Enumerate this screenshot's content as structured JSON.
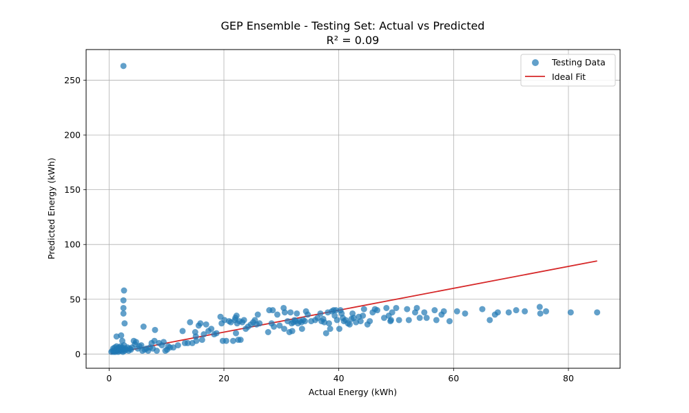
{
  "chart_data": {
    "type": "scatter",
    "title": "GEP Ensemble - Testing Set: Actual vs Predicted",
    "subtitle": "R² = 0.09",
    "xlabel": "Actual Energy (kWh)",
    "ylabel": "Predicted Energy (kWh)",
    "xlim": [
      -4,
      89
    ],
    "ylim": [
      -13,
      278
    ],
    "xticks": [
      0,
      20,
      40,
      60,
      80
    ],
    "yticks": [
      0,
      50,
      100,
      150,
      200,
      250
    ],
    "grid": true,
    "legend_position": "top-right",
    "colors": {
      "scatter": "#1f77b4",
      "ideal": "#d62728"
    },
    "legend": [
      {
        "label": "Testing Data",
        "marker": "circle"
      },
      {
        "label": "Ideal Fit",
        "marker": "line"
      }
    ],
    "ideal_fit": {
      "name": "Ideal Fit",
      "x": [
        0.3,
        85
      ],
      "y": [
        0.3,
        85
      ]
    },
    "series": [
      {
        "name": "Testing Data",
        "points": [
          [
            0.4,
            2
          ],
          [
            0.6,
            3
          ],
          [
            0.7,
            5
          ],
          [
            0.8,
            2
          ],
          [
            0.9,
            3
          ],
          [
            1.0,
            6
          ],
          [
            1.1,
            2
          ],
          [
            1.2,
            4
          ],
          [
            1.3,
            7
          ],
          [
            1.4,
            3
          ],
          [
            1.5,
            5
          ],
          [
            1.6,
            2
          ],
          [
            1.7,
            6
          ],
          [
            1.8,
            3
          ],
          [
            1.9,
            4
          ],
          [
            2.0,
            7
          ],
          [
            2.1,
            5
          ],
          [
            2.2,
            3
          ],
          [
            2.3,
            6
          ],
          [
            2.4,
            2
          ],
          [
            2.5,
            4
          ],
          [
            2.6,
            8
          ],
          [
            2.7,
            3
          ],
          [
            2.8,
            5
          ],
          [
            3.0,
            4
          ],
          [
            3.2,
            6
          ],
          [
            3.4,
            3
          ],
          [
            3.6,
            5
          ],
          [
            3.8,
            4
          ],
          [
            4.0,
            6
          ],
          [
            1.3,
            16
          ],
          [
            2.1,
            17
          ],
          [
            2.3,
            12
          ],
          [
            2.5,
            263
          ],
          [
            2.6,
            58
          ],
          [
            2.5,
            49
          ],
          [
            2.5,
            42
          ],
          [
            2.5,
            37
          ],
          [
            2.7,
            28
          ],
          [
            4.3,
            12
          ],
          [
            4.5,
            9
          ],
          [
            4.7,
            11
          ],
          [
            5.0,
            5
          ],
          [
            5.3,
            7
          ],
          [
            5.6,
            8
          ],
          [
            5.8,
            3
          ],
          [
            6.0,
            25
          ],
          [
            6.2,
            4
          ],
          [
            6.5,
            5
          ],
          [
            6.8,
            3
          ],
          [
            7.1,
            6
          ],
          [
            7.4,
            10
          ],
          [
            7.6,
            5
          ],
          [
            7.9,
            12
          ],
          [
            8.0,
            22
          ],
          [
            8.3,
            3
          ],
          [
            8.7,
            10
          ],
          [
            9.2,
            8
          ],
          [
            9.5,
            11
          ],
          [
            9.8,
            3
          ],
          [
            10.1,
            4
          ],
          [
            10.3,
            7
          ],
          [
            10.6,
            6
          ],
          [
            11.2,
            6
          ],
          [
            12.0,
            8
          ],
          [
            12.8,
            21
          ],
          [
            13.2,
            10
          ],
          [
            13.7,
            10
          ],
          [
            14.1,
            29
          ],
          [
            14.5,
            10
          ],
          [
            15.0,
            20
          ],
          [
            15.1,
            16
          ],
          [
            15.2,
            12
          ],
          [
            15.6,
            26
          ],
          [
            15.9,
            28
          ],
          [
            16.2,
            13
          ],
          [
            16.5,
            18
          ],
          [
            16.9,
            27
          ],
          [
            17.3,
            21
          ],
          [
            17.8,
            23
          ],
          [
            18.3,
            18
          ],
          [
            18.7,
            19
          ],
          [
            19.4,
            34
          ],
          [
            19.6,
            28
          ],
          [
            19.8,
            12
          ],
          [
            20.1,
            31
          ],
          [
            20.4,
            12
          ],
          [
            20.9,
            30
          ],
          [
            21.2,
            29
          ],
          [
            21.6,
            12
          ],
          [
            21.9,
            31
          ],
          [
            22.0,
            33
          ],
          [
            22.1,
            19
          ],
          [
            22.2,
            35
          ],
          [
            22.3,
            28
          ],
          [
            22.5,
            13
          ],
          [
            22.7,
            30
          ],
          [
            22.9,
            13
          ],
          [
            23.2,
            29
          ],
          [
            23.5,
            31
          ],
          [
            23.8,
            23
          ],
          [
            24.2,
            25
          ],
          [
            24.7,
            27
          ],
          [
            25.1,
            29
          ],
          [
            25.4,
            31
          ],
          [
            25.7,
            27
          ],
          [
            25.9,
            36
          ],
          [
            26.2,
            28
          ],
          [
            27.7,
            20
          ],
          [
            27.9,
            40
          ],
          [
            28.3,
            28
          ],
          [
            28.5,
            40
          ],
          [
            28.7,
            25
          ],
          [
            29.3,
            36
          ],
          [
            29.7,
            26
          ],
          [
            30.4,
            42
          ],
          [
            30.5,
            23
          ],
          [
            30.6,
            38
          ],
          [
            31.1,
            30
          ],
          [
            31.4,
            20
          ],
          [
            31.6,
            38
          ],
          [
            31.8,
            28
          ],
          [
            31.9,
            21
          ],
          [
            32.1,
            29
          ],
          [
            32.3,
            31
          ],
          [
            32.5,
            30
          ],
          [
            32.7,
            37
          ],
          [
            32.9,
            28
          ],
          [
            33.2,
            30
          ],
          [
            33.5,
            29
          ],
          [
            33.6,
            23
          ],
          [
            33.8,
            31
          ],
          [
            34.1,
            30
          ],
          [
            34.3,
            39
          ],
          [
            34.6,
            36
          ],
          [
            35.2,
            30
          ],
          [
            35.9,
            31
          ],
          [
            36.3,
            33
          ],
          [
            36.8,
            37
          ],
          [
            37.0,
            30
          ],
          [
            37.3,
            32
          ],
          [
            37.5,
            29
          ],
          [
            37.8,
            19
          ],
          [
            38.1,
            38
          ],
          [
            38.3,
            28
          ],
          [
            38.5,
            23
          ],
          [
            38.8,
            39
          ],
          [
            39.1,
            40
          ],
          [
            39.3,
            35
          ],
          [
            39.5,
            40
          ],
          [
            39.7,
            31
          ],
          [
            40.1,
            23
          ],
          [
            40.3,
            40
          ],
          [
            40.5,
            37
          ],
          [
            40.7,
            33
          ],
          [
            40.9,
            30
          ],
          [
            41.2,
            31
          ],
          [
            41.6,
            28
          ],
          [
            41.9,
            27
          ],
          [
            42.2,
            32
          ],
          [
            42.4,
            37
          ],
          [
            42.6,
            33
          ],
          [
            43.0,
            29
          ],
          [
            43.5,
            34
          ],
          [
            43.8,
            30
          ],
          [
            44.2,
            35
          ],
          [
            44.4,
            41
          ],
          [
            45.0,
            27
          ],
          [
            45.4,
            30
          ],
          [
            45.9,
            38
          ],
          [
            46.3,
            41
          ],
          [
            46.7,
            40
          ],
          [
            47.9,
            33
          ],
          [
            48.3,
            42
          ],
          [
            48.7,
            35
          ],
          [
            49.0,
            30
          ],
          [
            49.3,
            38
          ],
          [
            49.1,
            31
          ],
          [
            50.0,
            42
          ],
          [
            50.5,
            31
          ],
          [
            51.9,
            41
          ],
          [
            52.2,
            31
          ],
          [
            53.3,
            38
          ],
          [
            53.6,
            42
          ],
          [
            54.1,
            33
          ],
          [
            54.9,
            38
          ],
          [
            55.3,
            33
          ],
          [
            56.7,
            40
          ],
          [
            57.0,
            31
          ],
          [
            57.9,
            36
          ],
          [
            58.3,
            39
          ],
          [
            59.3,
            30
          ],
          [
            60.6,
            39
          ],
          [
            62.0,
            37
          ],
          [
            65.0,
            41
          ],
          [
            66.3,
            31
          ],
          [
            67.2,
            36
          ],
          [
            67.7,
            38
          ],
          [
            69.6,
            38
          ],
          [
            70.9,
            40
          ],
          [
            72.4,
            39
          ],
          [
            75.0,
            43
          ],
          [
            75.1,
            37
          ],
          [
            76.1,
            39
          ],
          [
            80.4,
            38
          ],
          [
            85.0,
            38
          ]
        ]
      }
    ]
  }
}
